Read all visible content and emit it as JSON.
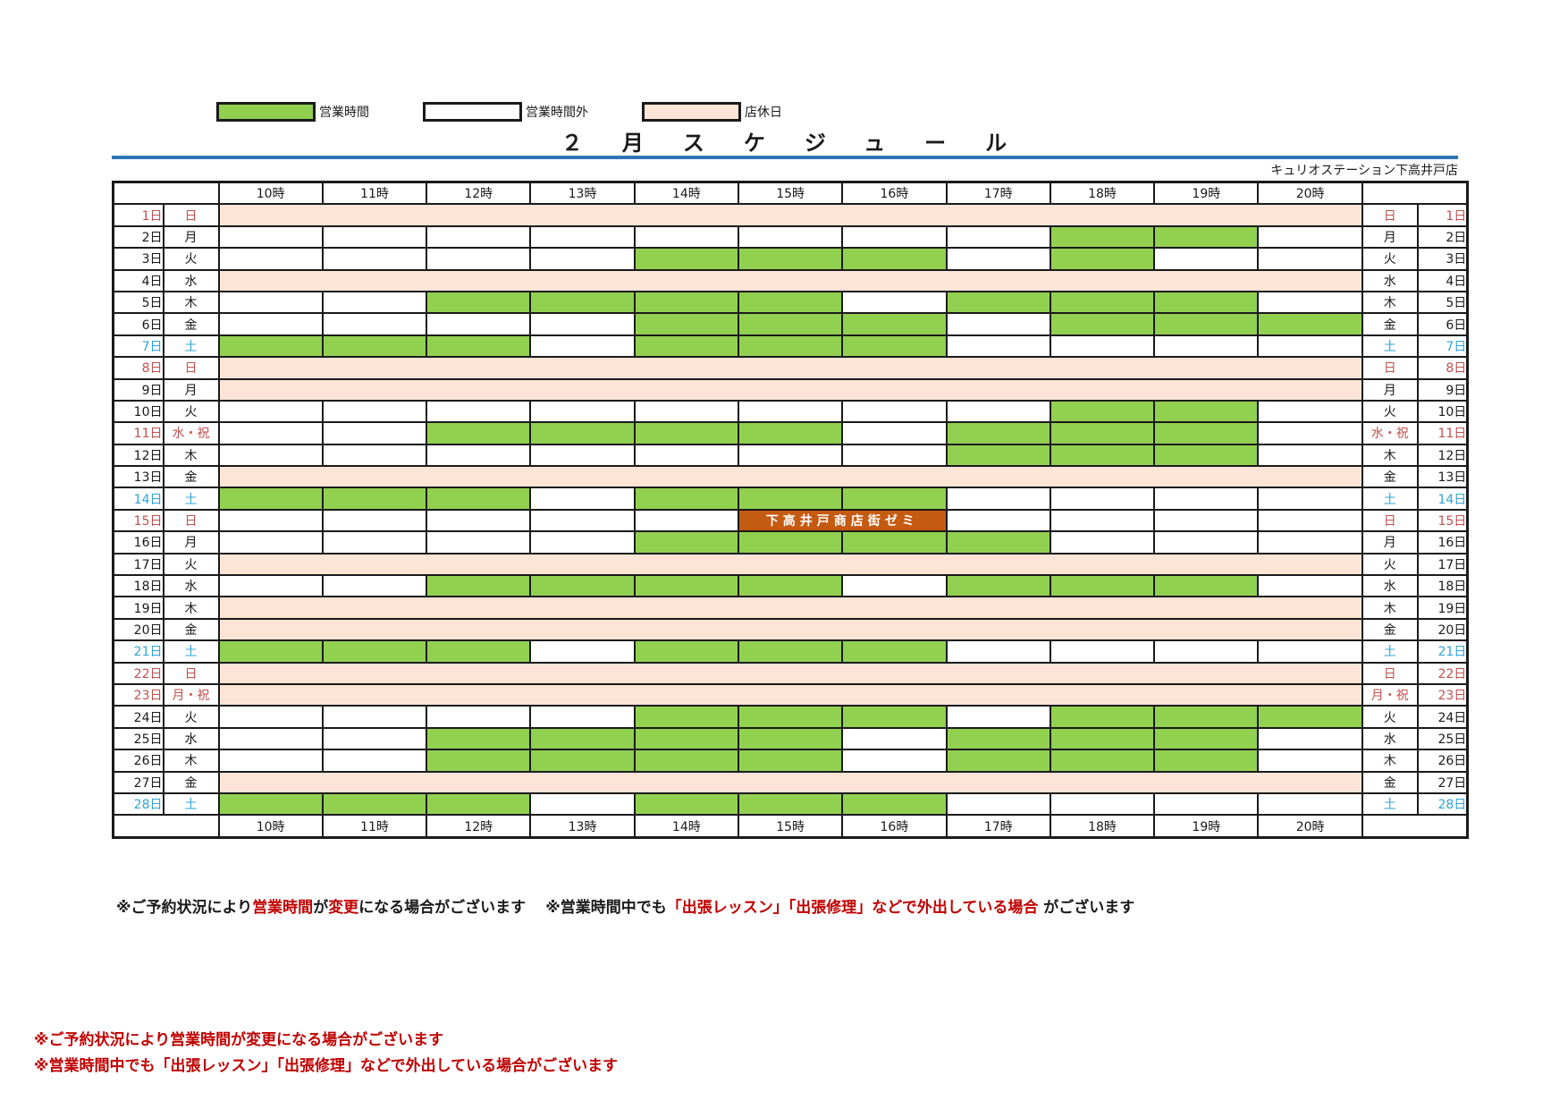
{
  "legend": [
    {
      "label": "営業時間",
      "color": "#92d050"
    },
    {
      "label": "営業時間外",
      "color": "#ffffff"
    },
    {
      "label": "店休日",
      "color": "#fce4d6"
    }
  ],
  "title": "２月スケジュール",
  "store_name": "キュリオステーション下高井戸店",
  "hours": [
    "10時",
    "11時",
    "12時",
    "13時",
    "14時",
    "15時",
    "16時",
    "17時",
    "18時",
    "19時",
    "20時"
  ],
  "colors": {
    "open": "#92d050",
    "off": "#ffffff",
    "closed": "#fce4d6",
    "event": "#c55a11",
    "sunday_holiday": "#c0504d",
    "saturday": "#2fa4d6"
  },
  "days": [
    {
      "date": "1日",
      "weekday": "日",
      "type": "sun",
      "closed": true
    },
    {
      "date": "2日",
      "weekday": "月",
      "type": "",
      "slots": "00000000110"
    },
    {
      "date": "3日",
      "weekday": "火",
      "type": "",
      "slots": "00001110100"
    },
    {
      "date": "4日",
      "weekday": "水",
      "type": "",
      "closed": true
    },
    {
      "date": "5日",
      "weekday": "木",
      "type": "",
      "slots": "00111101110"
    },
    {
      "date": "6日",
      "weekday": "金",
      "type": "",
      "slots": "00001110111"
    },
    {
      "date": "7日",
      "weekday": "土",
      "type": "sat",
      "slots": "11101110000"
    },
    {
      "date": "8日",
      "weekday": "日",
      "type": "sun",
      "closed": true
    },
    {
      "date": "9日",
      "weekday": "月",
      "type": "",
      "closed": true
    },
    {
      "date": "10日",
      "weekday": "火",
      "type": "",
      "slots": "00000000110"
    },
    {
      "date": "11日",
      "weekday": "水・祝",
      "type": "hol",
      "slots": "00111101110"
    },
    {
      "date": "12日",
      "weekday": "木",
      "type": "",
      "slots": "00000001110"
    },
    {
      "date": "13日",
      "weekday": "金",
      "type": "",
      "closed": true
    },
    {
      "date": "14日",
      "weekday": "土",
      "type": "sat",
      "slots": "11101110000"
    },
    {
      "date": "15日",
      "weekday": "日",
      "type": "sun",
      "slots": "00000000000",
      "event": {
        "label": "下高井戸商店街ゼミ",
        "start": 5,
        "span": 2
      }
    },
    {
      "date": "16日",
      "weekday": "月",
      "type": "",
      "slots": "00001111000"
    },
    {
      "date": "17日",
      "weekday": "火",
      "type": "",
      "closed": true
    },
    {
      "date": "18日",
      "weekday": "水",
      "type": "",
      "slots": "00111101110"
    },
    {
      "date": "19日",
      "weekday": "木",
      "type": "",
      "closed": true
    },
    {
      "date": "20日",
      "weekday": "金",
      "type": "",
      "closed": true
    },
    {
      "date": "21日",
      "weekday": "土",
      "type": "sat",
      "slots": "11101110000"
    },
    {
      "date": "22日",
      "weekday": "日",
      "type": "sun",
      "closed": true
    },
    {
      "date": "23日",
      "weekday": "月・祝",
      "type": "hol",
      "closed": true
    },
    {
      "date": "24日",
      "weekday": "火",
      "type": "",
      "slots": "00001110111"
    },
    {
      "date": "25日",
      "weekday": "水",
      "type": "",
      "slots": "00111101110"
    },
    {
      "date": "26日",
      "weekday": "木",
      "type": "",
      "slots": "00111101110"
    },
    {
      "date": "27日",
      "weekday": "金",
      "type": "",
      "closed": true
    },
    {
      "date": "28日",
      "weekday": "土",
      "type": "sat",
      "slots": "11101110000"
    }
  ],
  "note": {
    "p1": "※ご予約状況により",
    "p2": "営業時間",
    "p3": "が",
    "p4": "変更",
    "p5": "になる場合がございます",
    "p6": "※営業時間中でも",
    "p7": "「出張レッスン」「出張修理」などで外出している場合",
    "p8": "がございます"
  },
  "bottom_notes": [
    "※ご予約状況により営業時間が変更になる場合がございます",
    "※営業時間中でも「出張レッスン」「出張修理」などで外出している場合がございます"
  ]
}
